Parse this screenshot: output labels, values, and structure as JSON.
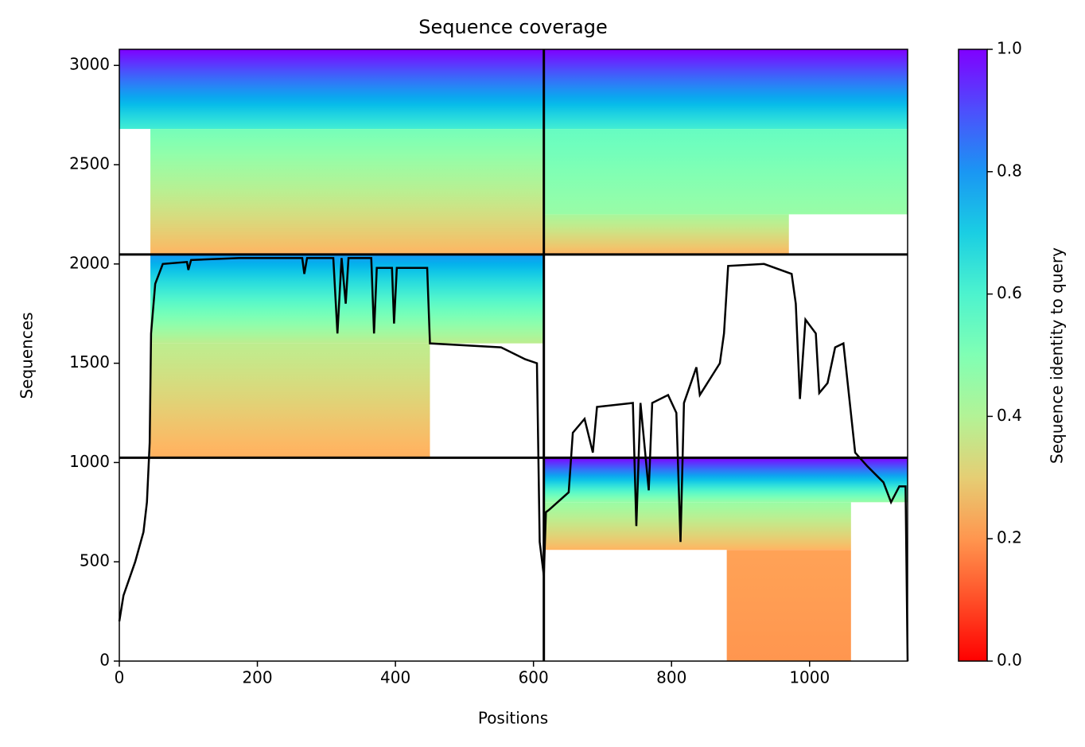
{
  "chart_data": {
    "type": "coverage",
    "title": "Sequence coverage",
    "x_label": "Positions",
    "y_label": "Sequences",
    "xlim": [
      0,
      1142
    ],
    "ylim": [
      0,
      3081
    ],
    "xticks": [
      0,
      200,
      400,
      600,
      800,
      1000
    ],
    "yticks": [
      0,
      500,
      1000,
      1500,
      2000,
      2500,
      3000
    ],
    "colormap": "rainbow_r",
    "colorbar": {
      "label": "Sequence identity to query",
      "lim": [
        0,
        1
      ],
      "ticks": [
        {
          "value": 0,
          "label": "0.0"
        },
        {
          "value": 0.2,
          "label": "0.2"
        },
        {
          "value": 0.4,
          "label": "0.4"
        },
        {
          "value": 0.6,
          "label": "0.6"
        },
        {
          "value": 0.8,
          "label": "0.8"
        },
        {
          "value": 1,
          "label": "1.0"
        }
      ]
    },
    "boundaries": {
      "x": [
        615
      ],
      "y": [
        1024,
        2048
      ]
    },
    "regions": [
      {
        "x": [
          0,
          615
        ],
        "y": [
          2680,
          3081
        ],
        "identity": [
          0.62,
          1.0
        ]
      },
      {
        "x": [
          45,
          615
        ],
        "y": [
          2048,
          2680
        ],
        "identity": [
          0.25,
          0.52
        ]
      },
      {
        "x": [
          615,
          1142
        ],
        "y": [
          2680,
          3081
        ],
        "identity": [
          0.62,
          1.0
        ]
      },
      {
        "x": [
          615,
          1142
        ],
        "y": [
          2250,
          2680
        ],
        "identity": [
          0.45,
          0.55
        ]
      },
      {
        "x": [
          615,
          970
        ],
        "y": [
          2048,
          2250
        ],
        "identity": [
          0.25,
          0.42
        ]
      },
      {
        "x": [
          45,
          615
        ],
        "y": [
          1600,
          2048
        ],
        "identity": [
          0.38,
          0.8
        ]
      },
      {
        "x": [
          45,
          450
        ],
        "y": [
          1024,
          1600
        ],
        "identity": [
          0.24,
          0.38
        ]
      },
      {
        "x": [
          615,
          1142
        ],
        "y": [
          800,
          1024
        ],
        "identity": [
          0.45,
          1.0
        ]
      },
      {
        "x": [
          615,
          1060
        ],
        "y": [
          560,
          800
        ],
        "identity": [
          0.25,
          0.45
        ]
      },
      {
        "x": [
          880,
          1060
        ],
        "y": [
          0,
          560
        ],
        "identity": [
          0.2,
          0.22
        ]
      }
    ],
    "series": [
      {
        "name": "coverage",
        "color": "#000000",
        "x": [
          0,
          6,
          23,
          35,
          40,
          44,
          46,
          52,
          63,
          98,
          100,
          104,
          173,
          265,
          268,
          272,
          310,
          316,
          322,
          328,
          332,
          365,
          369,
          373,
          395,
          398,
          402,
          446,
          450,
          553,
          588,
          605,
          609,
          615,
          618,
          622,
          651,
          657,
          674,
          686,
          692,
          744,
          749,
          755,
          767,
          772,
          795,
          807,
          813,
          818,
          836,
          841,
          870,
          876,
          882,
          934,
          974,
          980,
          986,
          994,
          1009,
          1014,
          1026,
          1037,
          1049,
          1066,
          1084,
          1107,
          1118,
          1130,
          1139,
          1142
        ],
        "values": [
          200,
          330,
          500,
          650,
          800,
          1100,
          1650,
          1900,
          2000,
          2010,
          1970,
          2020,
          2030,
          2030,
          1950,
          2030,
          2030,
          1650,
          2030,
          1800,
          2030,
          2030,
          1650,
          1980,
          1980,
          1700,
          1980,
          1980,
          1600,
          1580,
          1520,
          1500,
          600,
          430,
          750,
          760,
          850,
          1150,
          1220,
          1050,
          1280,
          1300,
          680,
          1300,
          860,
          1300,
          1340,
          1250,
          600,
          1300,
          1480,
          1340,
          1500,
          1650,
          1990,
          2000,
          1950,
          1800,
          1320,
          1720,
          1650,
          1350,
          1400,
          1580,
          1600,
          1050,
          980,
          900,
          800,
          880,
          880,
          0
        ]
      }
    ]
  }
}
